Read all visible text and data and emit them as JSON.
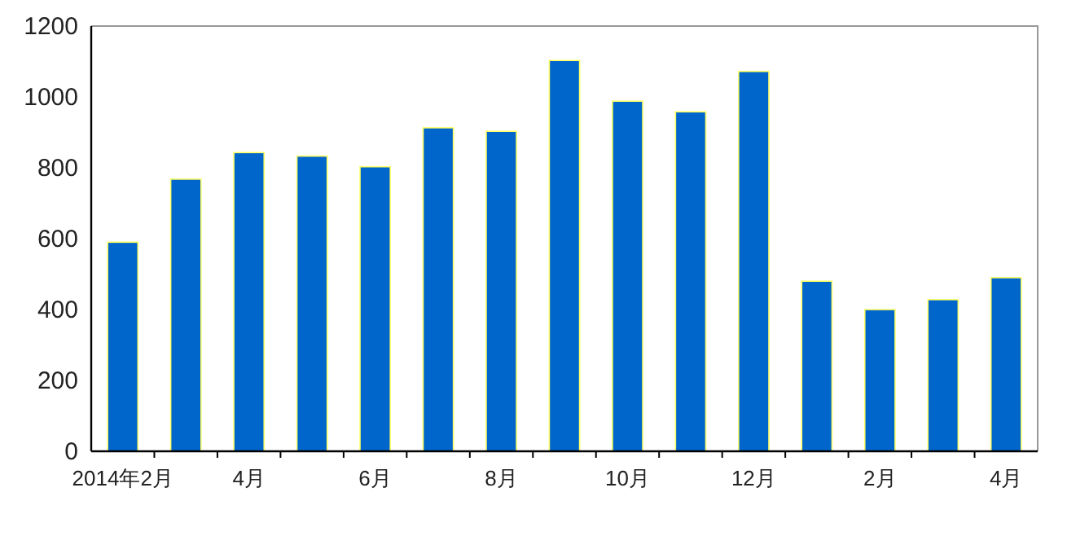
{
  "chart_data": {
    "type": "bar",
    "categories": [
      "2014年2月",
      null,
      "4月",
      null,
      "6月",
      null,
      "8月",
      null,
      "10月",
      null,
      "12月",
      null,
      "2月",
      null,
      "4月"
    ],
    "values": [
      590,
      768,
      843,
      833,
      803,
      913,
      903,
      1103,
      988,
      958,
      1072,
      480,
      400,
      428,
      490
    ],
    "color": "#0066cc",
    "ylim": [
      0,
      1200
    ],
    "yticks": [
      0,
      200,
      400,
      600,
      800,
      1000,
      1200
    ],
    "grid": false
  }
}
